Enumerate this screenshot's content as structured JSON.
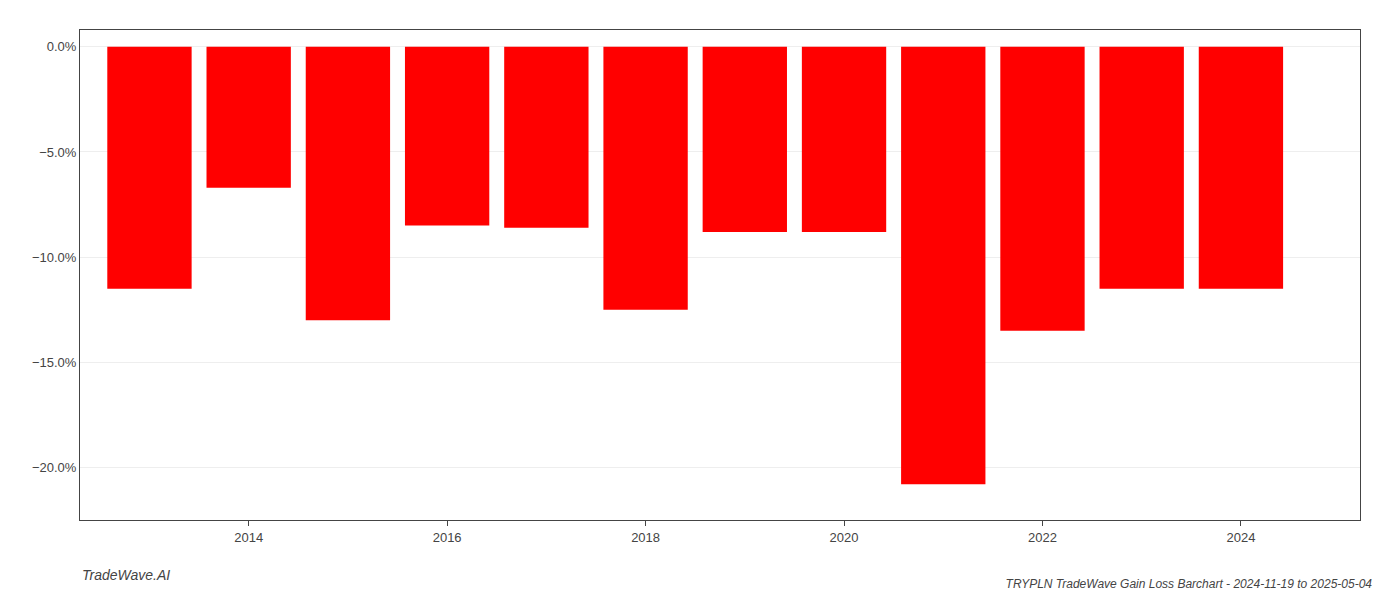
{
  "chart_data": {
    "type": "bar",
    "title": "TRYPLN TradeWave Gain Loss Barchart - 2024-11-19 to 2025-05-04",
    "annotations": [
      "TradeWave.AI"
    ],
    "x": [
      2013,
      2014,
      2015,
      2016,
      2017,
      2018,
      2019,
      2020,
      2021,
      2022,
      2023,
      2024
    ],
    "values": [
      -11.5,
      -6.7,
      -13.0,
      -8.5,
      -8.6,
      -12.5,
      -8.8,
      -8.8,
      -20.8,
      -13.5,
      -11.5,
      -11.5
    ],
    "color": "#ff0000",
    "xlim": [
      2012.3,
      2025.2
    ],
    "xticks": [
      2014,
      2016,
      2018,
      2020,
      2022,
      2024
    ],
    "ylim": [
      -22.5,
      0.8
    ],
    "yticks": [
      {
        "value": 0.0,
        "label": "0.0%"
      },
      {
        "value": -5.0,
        "label": "−5.0%"
      },
      {
        "value": -10.0,
        "label": "−10.0%"
      },
      {
        "value": -15.0,
        "label": "−15.0%"
      },
      {
        "value": -20.0,
        "label": "−20.0%"
      }
    ],
    "grid": true
  }
}
